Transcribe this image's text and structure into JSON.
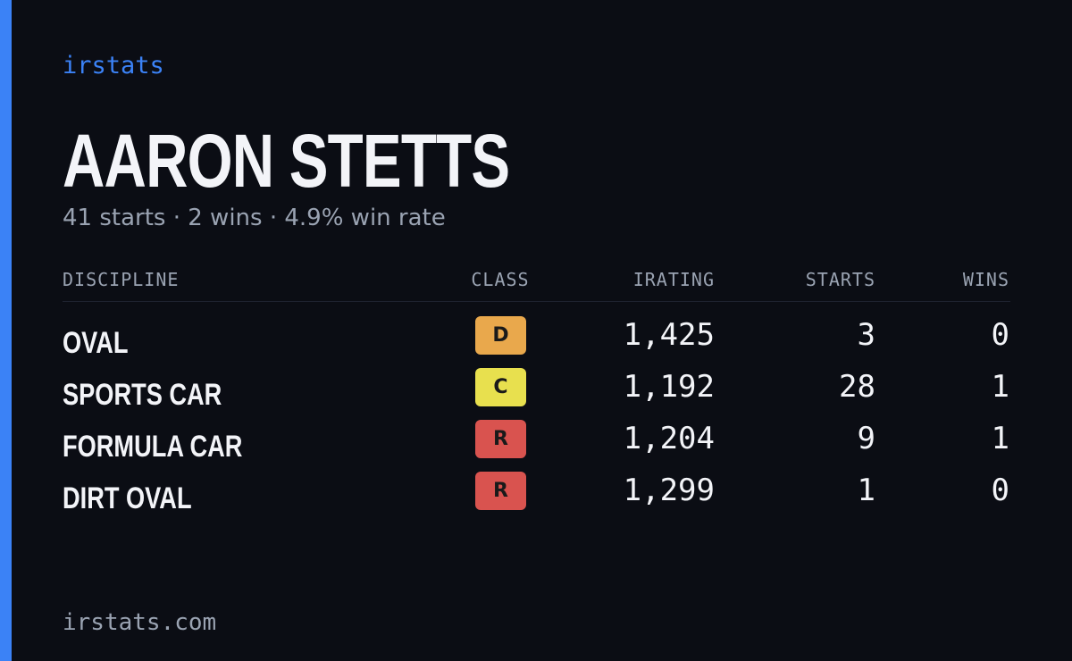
{
  "brand": "irstats",
  "driver": {
    "name": "AARON STETTS",
    "summary": "41 starts · 2 wins · 4.9% win rate"
  },
  "table": {
    "columns": [
      "DISCIPLINE",
      "CLASS",
      "IRATING",
      "STARTS",
      "WINS"
    ],
    "rows": [
      {
        "discipline": "OVAL",
        "class": "D",
        "class_color": "#e9a84c",
        "irating": "1,425",
        "starts": "3",
        "wins": "0"
      },
      {
        "discipline": "SPORTS CAR",
        "class": "C",
        "class_color": "#e8e04e",
        "irating": "1,192",
        "starts": "28",
        "wins": "1"
      },
      {
        "discipline": "FORMULA CAR",
        "class": "R",
        "class_color": "#d9534f",
        "irating": "1,204",
        "starts": "9",
        "wins": "1"
      },
      {
        "discipline": "DIRT OVAL",
        "class": "R",
        "class_color": "#d9534f",
        "irating": "1,299",
        "starts": "1",
        "wins": "0"
      }
    ]
  },
  "footer": "irstats.com"
}
